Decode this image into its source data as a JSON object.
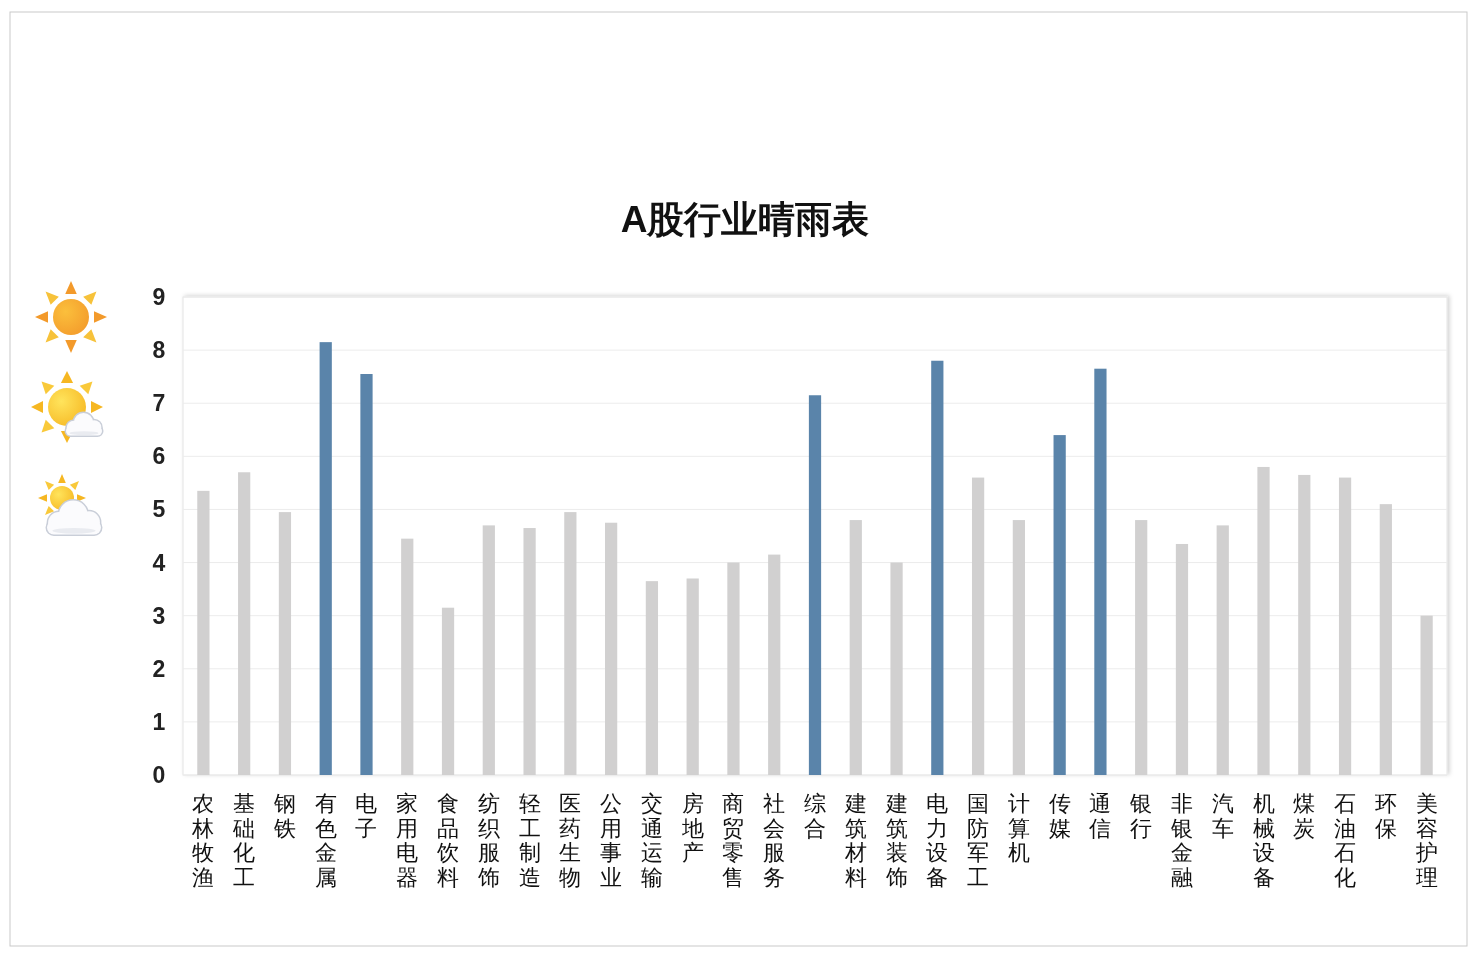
{
  "chart_data": {
    "type": "bar",
    "title": "A股行业晴雨表",
    "categories": [
      "农林牧渔",
      "基础化工",
      "钢铁",
      "有色金属",
      "电子",
      "家用电器",
      "食品饮料",
      "纺织服饰",
      "轻工制造",
      "医药生物",
      "公用事业",
      "交通运输",
      "房地产",
      "商贸零售",
      "社会服务",
      "综合",
      "建筑材料",
      "建筑装饰",
      "电力设备",
      "国防军工",
      "计算机",
      "传媒",
      "通信",
      "银行",
      "非银金融",
      "汽车",
      "机械设备",
      "煤炭",
      "石油石化",
      "环保",
      "美容护理"
    ],
    "values": [
      5.35,
      5.7,
      4.95,
      8.15,
      7.55,
      4.45,
      3.15,
      4.7,
      4.65,
      4.95,
      4.75,
      3.65,
      3.7,
      4.0,
      4.15,
      7.15,
      4.8,
      4.0,
      7.8,
      5.6,
      4.8,
      6.4,
      7.65,
      4.8,
      4.35,
      4.7,
      5.8,
      5.65,
      5.6,
      5.1,
      3.0
    ],
    "colors": [
      "#d1d0d0",
      "#d1d0d0",
      "#d1d0d0",
      "#5a84aa",
      "#5a84aa",
      "#d1d0d0",
      "#d1d0d0",
      "#d1d0d0",
      "#d1d0d0",
      "#d1d0d0",
      "#d1d0d0",
      "#d1d0d0",
      "#d1d0d0",
      "#d1d0d0",
      "#d1d0d0",
      "#5a84aa",
      "#d1d0d0",
      "#d1d0d0",
      "#5a84aa",
      "#d1d0d0",
      "#d1d0d0",
      "#5a84aa",
      "#5a84aa",
      "#d1d0d0",
      "#d1d0d0",
      "#d1d0d0",
      "#d1d0d0",
      "#d1d0d0",
      "#d1d0d0",
      "#d1d0d0",
      "#d1d0d0"
    ],
    "ylim": [
      0,
      9
    ],
    "yticks": [
      0,
      1,
      2,
      3,
      4,
      5,
      6,
      7,
      8,
      9
    ],
    "grid": "y"
  }
}
